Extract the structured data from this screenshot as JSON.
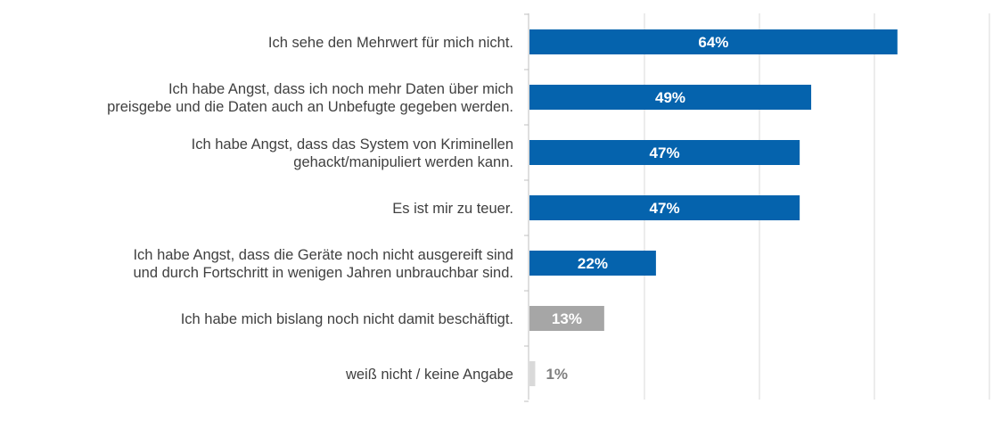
{
  "chart_data": {
    "type": "bar",
    "orientation": "horizontal",
    "title": "",
    "xlabel": "",
    "ylabel": "",
    "xlim": [
      0,
      80
    ],
    "grid": true,
    "categories": [
      [
        "Ich sehe den Mehrwert für mich nicht."
      ],
      [
        "Ich habe Angst, dass ich noch mehr Daten über mich",
        "preisgebe und die Daten auch an Unbefugte gegeben werden."
      ],
      [
        "Ich habe Angst, dass das System von Kriminellen",
        "gehackt/manipuliert werden kann."
      ],
      [
        "Es ist mir zu teuer."
      ],
      [
        "Ich habe Angst, dass die Geräte noch nicht ausgereift sind",
        "und durch Fortschritt in wenigen Jahren unbrauchbar sind."
      ],
      [
        "Ich habe mich bislang noch nicht damit beschäftigt."
      ],
      [
        "weiß nicht / keine Angabe"
      ]
    ],
    "values": [
      64,
      49,
      47,
      47,
      22,
      13,
      1
    ],
    "labels": [
      "64%",
      "49%",
      "47%",
      "47%",
      "22%",
      "13%",
      "1%"
    ],
    "colors": [
      "#0563ad",
      "#0563ad",
      "#0563ad",
      "#0563ad",
      "#0563ad",
      "#a6a6a6",
      "#d9d9d9"
    ]
  }
}
